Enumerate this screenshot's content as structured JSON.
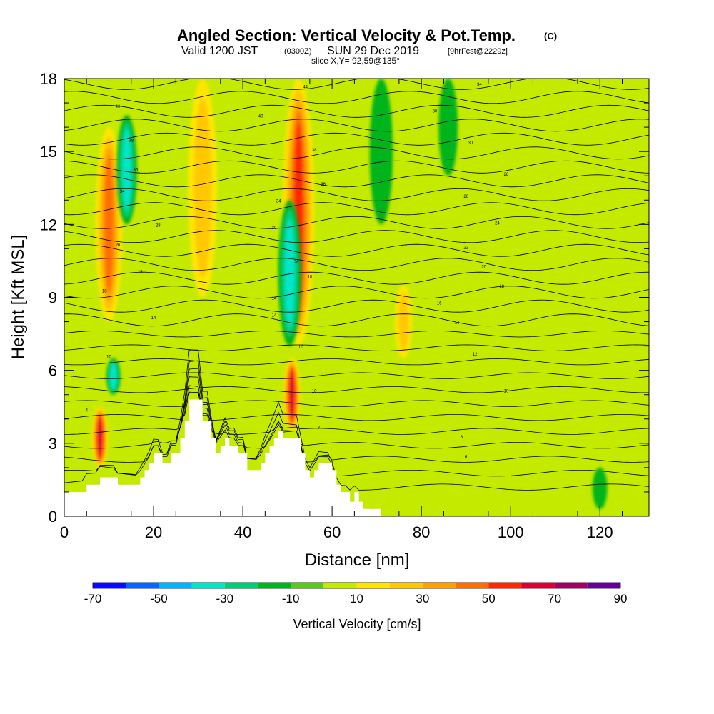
{
  "header": {
    "title": "Angled Section: Vertical Velocity & Pot.Temp.",
    "copyright": "(C)",
    "valid_prefix": "Valid 1200 JST",
    "valid_utc": "(0300Z)",
    "valid_date": "SUN 29 Dec 2019",
    "forecast": "[9hrFcst@2229z]",
    "slice": "slice X,Y= 92,59@135°"
  },
  "colors": {
    "background_field": "#c4ea00",
    "terrain": "#ffffff",
    "contour": "#000000",
    "colorbar": [
      "#0a0aff",
      "#0a64ff",
      "#00b4ff",
      "#00e6c8",
      "#00cd78",
      "#00b41e",
      "#5ac81e",
      "#c4ea00",
      "#ffe600",
      "#ffc800",
      "#ffa000",
      "#ff6e00",
      "#ff2800",
      "#dc0032",
      "#a00064",
      "#640096"
    ]
  },
  "chart_data": {
    "type": "heatmap",
    "title": "Angled Section: Vertical Velocity & Pot.Temp.",
    "xlabel": "Distance [nm]",
    "ylabel": "Height [Kft MSL]",
    "xlim": [
      0,
      131
    ],
    "ylim": [
      0,
      18
    ],
    "x_ticks": [
      "0",
      "20",
      "40",
      "60",
      "80",
      "100",
      "120"
    ],
    "y_ticks": [
      "0",
      "3",
      "6",
      "9",
      "12",
      "15",
      "18"
    ],
    "colorbar": {
      "label": "Vertical Velocity [cm/s]",
      "range": [
        -70,
        90
      ],
      "step": 10,
      "tick_labels": [
        "-70",
        "-50",
        "-30",
        "-10",
        "10",
        "30",
        "50",
        "70",
        "90"
      ]
    },
    "terrain_profile": {
      "distance_nm": [
        0,
        5,
        5,
        8,
        8,
        12,
        12,
        17,
        17,
        18,
        18,
        19,
        19,
        20,
        20,
        22,
        22,
        24,
        24,
        26,
        26,
        27,
        27,
        28,
        28,
        31,
        31,
        33,
        33,
        34,
        34,
        35,
        35,
        36,
        36,
        37,
        37,
        39,
        39,
        41,
        41,
        44,
        44,
        45,
        45,
        46,
        46,
        47,
        47,
        48,
        48,
        49,
        49,
        53,
        53,
        54,
        54,
        55,
        55,
        56,
        56,
        57,
        57,
        60,
        60,
        61,
        61,
        62,
        62,
        64,
        64,
        65,
        65,
        66,
        66,
        67,
        67,
        68,
        68,
        71,
        71
      ],
      "height_kft": [
        1,
        1,
        1.3,
        1.3,
        1.6,
        1.6,
        1.3,
        1.3,
        1.6,
        1.6,
        1.9,
        1.9,
        2.2,
        2.2,
        2.6,
        2.6,
        2.2,
        2.2,
        2.6,
        2.6,
        3.2,
        3.2,
        3.9,
        3.9,
        4.8,
        4.8,
        3.9,
        3.9,
        3.2,
        3.2,
        2.6,
        2.6,
        2.9,
        2.9,
        3.2,
        3.2,
        2.9,
        2.9,
        2.6,
        2.6,
        1.9,
        1.9,
        2.2,
        2.2,
        2.6,
        2.6,
        2.9,
        2.9,
        3.2,
        3.2,
        3.5,
        3.5,
        3.2,
        3.2,
        2.6,
        2.6,
        1.9,
        1.9,
        1.6,
        1.6,
        1.9,
        1.9,
        2.2,
        2.2,
        1.9,
        1.9,
        1.3,
        1.3,
        1.0,
        1.0,
        0.6,
        0.6,
        1.0,
        1.0,
        0.6,
        0.6,
        0.3,
        0.3,
        0.3,
        0.3,
        0
      ]
    },
    "vertical_velocity_features": [
      {
        "center_nm": 8,
        "bottom_kft": 2,
        "top_kft": 4.5,
        "peak_cms": 60
      },
      {
        "center_nm": 10,
        "bottom_kft": 8,
        "top_kft": 16,
        "peak_cms": 40
      },
      {
        "center_nm": 14,
        "bottom_kft": 12,
        "top_kft": 16.5,
        "peak_cms": -30
      },
      {
        "center_nm": 11,
        "bottom_kft": 5,
        "top_kft": 6.5,
        "peak_cms": -30
      },
      {
        "center_nm": 31,
        "bottom_kft": 9,
        "top_kft": 18,
        "peak_cms": 20
      },
      {
        "center_nm": 51,
        "bottom_kft": 3.5,
        "top_kft": 6.5,
        "peak_cms": 60
      },
      {
        "center_nm": 52.5,
        "bottom_kft": 7,
        "top_kft": 18,
        "peak_cms": 50
      },
      {
        "center_nm": 50.5,
        "bottom_kft": 7,
        "top_kft": 13,
        "peak_cms": -30
      },
      {
        "center_nm": 76,
        "bottom_kft": 6.5,
        "top_kft": 9.5,
        "peak_cms": 20
      },
      {
        "center_nm": 71,
        "bottom_kft": 12,
        "top_kft": 18,
        "peak_cms": -10
      },
      {
        "center_nm": 86,
        "bottom_kft": 14,
        "top_kft": 18,
        "peak_cms": -10
      },
      {
        "center_nm": 120,
        "bottom_kft": 0.3,
        "top_kft": 2,
        "peak_cms": -10
      }
    ],
    "pot_temp_contour_labels": [
      {
        "x_nm": 12,
        "y_kft": 16.8,
        "text": "40"
      },
      {
        "x_nm": 15,
        "y_kft": 15.4,
        "text": "38"
      },
      {
        "x_nm": 16,
        "y_kft": 14.2,
        "text": "36"
      },
      {
        "x_nm": 13,
        "y_kft": 13.3,
        "text": "34"
      },
      {
        "x_nm": 21,
        "y_kft": 11.9,
        "text": "28"
      },
      {
        "x_nm": 12,
        "y_kft": 11.1,
        "text": "26"
      },
      {
        "x_nm": 17,
        "y_kft": 10.0,
        "text": "18"
      },
      {
        "x_nm": 9,
        "y_kft": 9.2,
        "text": "18"
      },
      {
        "x_nm": 20,
        "y_kft": 8.1,
        "text": "14"
      },
      {
        "x_nm": 10,
        "y_kft": 6.5,
        "text": "10"
      },
      {
        "x_nm": 5,
        "y_kft": 4.3,
        "text": "4"
      },
      {
        "x_nm": 54,
        "y_kft": 17.6,
        "text": "44"
      },
      {
        "x_nm": 44,
        "y_kft": 16.4,
        "text": "40"
      },
      {
        "x_nm": 56,
        "y_kft": 15.0,
        "text": "38"
      },
      {
        "x_nm": 58,
        "y_kft": 13.6,
        "text": "36"
      },
      {
        "x_nm": 48,
        "y_kft": 12.9,
        "text": "34"
      },
      {
        "x_nm": 47,
        "y_kft": 11.8,
        "text": "30"
      },
      {
        "x_nm": 52,
        "y_kft": 10.4,
        "text": "26"
      },
      {
        "x_nm": 55,
        "y_kft": 9.8,
        "text": "18"
      },
      {
        "x_nm": 47,
        "y_kft": 8.9,
        "text": "14"
      },
      {
        "x_nm": 47,
        "y_kft": 8.2,
        "text": "14"
      },
      {
        "x_nm": 53,
        "y_kft": 6.9,
        "text": "10"
      },
      {
        "x_nm": 56,
        "y_kft": 5.1,
        "text": "10"
      },
      {
        "x_nm": 57,
        "y_kft": 3.6,
        "text": "8"
      },
      {
        "x_nm": 93,
        "y_kft": 17.7,
        "text": "34"
      },
      {
        "x_nm": 83,
        "y_kft": 16.6,
        "text": "30"
      },
      {
        "x_nm": 91,
        "y_kft": 15.3,
        "text": "30"
      },
      {
        "x_nm": 99,
        "y_kft": 14.0,
        "text": "28"
      },
      {
        "x_nm": 90,
        "y_kft": 13.1,
        "text": "26"
      },
      {
        "x_nm": 97,
        "y_kft": 12.0,
        "text": "24"
      },
      {
        "x_nm": 90,
        "y_kft": 11.0,
        "text": "22"
      },
      {
        "x_nm": 94,
        "y_kft": 10.2,
        "text": "20"
      },
      {
        "x_nm": 98,
        "y_kft": 9.4,
        "text": "18"
      },
      {
        "x_nm": 84,
        "y_kft": 8.7,
        "text": "16"
      },
      {
        "x_nm": 88,
        "y_kft": 7.9,
        "text": "14"
      },
      {
        "x_nm": 92,
        "y_kft": 6.6,
        "text": "12"
      },
      {
        "x_nm": 99,
        "y_kft": 5.1,
        "text": "10"
      },
      {
        "x_nm": 89,
        "y_kft": 3.2,
        "text": "8"
      },
      {
        "x_nm": 90,
        "y_kft": 2.4,
        "text": "6"
      }
    ],
    "pot_temp_contour_count": 30
  }
}
